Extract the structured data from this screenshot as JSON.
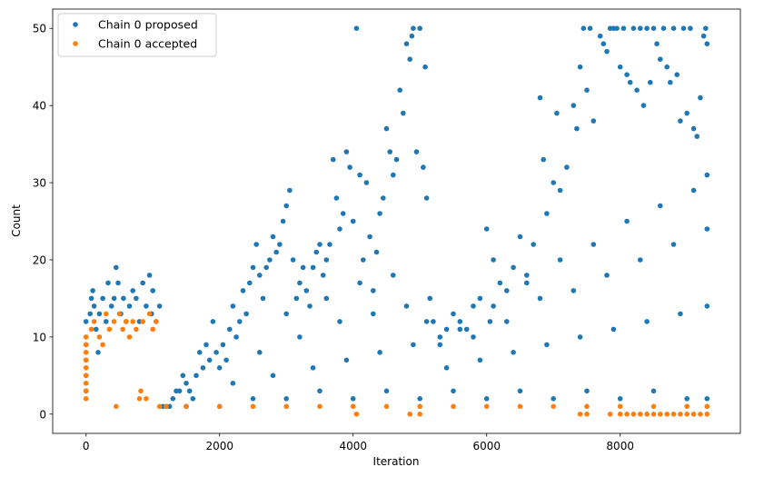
{
  "chart_data": {
    "type": "scatter",
    "title": "",
    "xlabel": "Iteration",
    "ylabel": "Count",
    "xlim": [
      -500,
      9800
    ],
    "ylim": [
      -2.5,
      52.5
    ],
    "x_ticks": [
      0,
      2000,
      4000,
      6000,
      8000
    ],
    "y_ticks": [
      0,
      10,
      20,
      30,
      40,
      50
    ],
    "grid": false,
    "legend_position": "upper-left",
    "series": [
      {
        "name": "Chain 0 proposed",
        "color": "#1f77b4",
        "points": [
          [
            0,
            3
          ],
          [
            0,
            5
          ],
          [
            0,
            7
          ],
          [
            0,
            9
          ],
          [
            0,
            12
          ],
          [
            60,
            13
          ],
          [
            80,
            15
          ],
          [
            100,
            16
          ],
          [
            120,
            14
          ],
          [
            150,
            11
          ],
          [
            180,
            8
          ],
          [
            200,
            13
          ],
          [
            250,
            15
          ],
          [
            300,
            12
          ],
          [
            330,
            17
          ],
          [
            380,
            14
          ],
          [
            420,
            15
          ],
          [
            450,
            19
          ],
          [
            480,
            17
          ],
          [
            520,
            13
          ],
          [
            560,
            15
          ],
          [
            600,
            12
          ],
          [
            650,
            14
          ],
          [
            700,
            16
          ],
          [
            750,
            15
          ],
          [
            800,
            12
          ],
          [
            850,
            17
          ],
          [
            900,
            14
          ],
          [
            950,
            18
          ],
          [
            980,
            13
          ],
          [
            1000,
            16
          ],
          [
            1050,
            12
          ],
          [
            1100,
            14
          ],
          [
            1150,
            1
          ],
          [
            1200,
            1
          ],
          [
            1250,
            1
          ],
          [
            1300,
            2
          ],
          [
            1350,
            3
          ],
          [
            1400,
            3
          ],
          [
            1450,
            5
          ],
          [
            1500,
            4
          ],
          [
            1550,
            3
          ],
          [
            1600,
            2
          ],
          [
            1650,
            5
          ],
          [
            1700,
            8
          ],
          [
            1750,
            6
          ],
          [
            1800,
            9
          ],
          [
            1850,
            7
          ],
          [
            1900,
            12
          ],
          [
            1950,
            8
          ],
          [
            2000,
            6
          ],
          [
            2050,
            9
          ],
          [
            2100,
            7
          ],
          [
            2150,
            11
          ],
          [
            2200,
            14
          ],
          [
            2250,
            10
          ],
          [
            2300,
            12
          ],
          [
            2350,
            16
          ],
          [
            2400,
            13
          ],
          [
            2450,
            17
          ],
          [
            2500,
            19
          ],
          [
            2550,
            22
          ],
          [
            2600,
            18
          ],
          [
            2650,
            15
          ],
          [
            2700,
            19
          ],
          [
            2750,
            20
          ],
          [
            2800,
            23
          ],
          [
            2850,
            21
          ],
          [
            2900,
            22
          ],
          [
            2950,
            25
          ],
          [
            3000,
            27
          ],
          [
            3050,
            29
          ],
          [
            3100,
            20
          ],
          [
            3150,
            15
          ],
          [
            3200,
            17
          ],
          [
            3250,
            19
          ],
          [
            3300,
            16
          ],
          [
            3350,
            14
          ],
          [
            3400,
            19
          ],
          [
            3450,
            21
          ],
          [
            3500,
            22
          ],
          [
            3550,
            18
          ],
          [
            3600,
            20
          ],
          [
            3650,
            22
          ],
          [
            3700,
            33
          ],
          [
            3750,
            28
          ],
          [
            3800,
            24
          ],
          [
            3850,
            26
          ],
          [
            3900,
            34
          ],
          [
            3950,
            32
          ],
          [
            4000,
            25
          ],
          [
            4050,
            50
          ],
          [
            4100,
            31
          ],
          [
            4150,
            20
          ],
          [
            4200,
            30
          ],
          [
            4250,
            23
          ],
          [
            4300,
            16
          ],
          [
            4350,
            21
          ],
          [
            4400,
            26
          ],
          [
            4450,
            28
          ],
          [
            4500,
            37
          ],
          [
            4550,
            34
          ],
          [
            4600,
            31
          ],
          [
            4650,
            33
          ],
          [
            4700,
            42
          ],
          [
            4750,
            39
          ],
          [
            4800,
            48
          ],
          [
            4850,
            46
          ],
          [
            4880,
            49
          ],
          [
            4900,
            50
          ],
          [
            4950,
            34
          ],
          [
            5000,
            50
          ],
          [
            5050,
            32
          ],
          [
            5080,
            45
          ],
          [
            5100,
            28
          ],
          [
            5150,
            15
          ],
          [
            5200,
            12
          ],
          [
            5300,
            10
          ],
          [
            5400,
            11
          ],
          [
            5500,
            13
          ],
          [
            5600,
            12
          ],
          [
            5700,
            11
          ],
          [
            5800,
            14
          ],
          [
            5900,
            15
          ],
          [
            6000,
            24
          ],
          [
            6050,
            12
          ],
          [
            6100,
            20
          ],
          [
            6200,
            17
          ],
          [
            6300,
            16
          ],
          [
            6400,
            19
          ],
          [
            6500,
            23
          ],
          [
            6600,
            18
          ],
          [
            6700,
            22
          ],
          [
            6800,
            41
          ],
          [
            6850,
            33
          ],
          [
            6900,
            26
          ],
          [
            7000,
            30
          ],
          [
            7050,
            39
          ],
          [
            7100,
            29
          ],
          [
            7200,
            32
          ],
          [
            7300,
            40
          ],
          [
            7350,
            37
          ],
          [
            7400,
            45
          ],
          [
            7450,
            50
          ],
          [
            7500,
            42
          ],
          [
            7550,
            50
          ],
          [
            7600,
            38
          ],
          [
            7700,
            49
          ],
          [
            7750,
            48
          ],
          [
            7800,
            47
          ],
          [
            7850,
            50
          ],
          [
            7900,
            50
          ],
          [
            7950,
            50
          ],
          [
            8000,
            45
          ],
          [
            8050,
            50
          ],
          [
            8100,
            44
          ],
          [
            8150,
            43
          ],
          [
            8200,
            50
          ],
          [
            8250,
            42
          ],
          [
            8300,
            50
          ],
          [
            8350,
            40
          ],
          [
            8400,
            50
          ],
          [
            8450,
            43
          ],
          [
            8500,
            50
          ],
          [
            8550,
            48
          ],
          [
            8600,
            46
          ],
          [
            8650,
            50
          ],
          [
            8700,
            45
          ],
          [
            8750,
            43
          ],
          [
            8800,
            50
          ],
          [
            8850,
            44
          ],
          [
            8900,
            38
          ],
          [
            8950,
            50
          ],
          [
            9000,
            39
          ],
          [
            9050,
            50
          ],
          [
            9100,
            37
          ],
          [
            9150,
            36
          ],
          [
            9200,
            41
          ],
          [
            9250,
            49
          ],
          [
            9280,
            50
          ],
          [
            9300,
            48
          ],
          [
            1500,
            1
          ],
          [
            2000,
            1
          ],
          [
            2500,
            2
          ],
          [
            3000,
            2
          ],
          [
            3500,
            3
          ],
          [
            4000,
            2
          ],
          [
            4500,
            3
          ],
          [
            5000,
            2
          ],
          [
            5500,
            3
          ],
          [
            6000,
            2
          ],
          [
            6500,
            3
          ],
          [
            7000,
            2
          ],
          [
            7500,
            3
          ],
          [
            8000,
            2
          ],
          [
            8500,
            3
          ],
          [
            9000,
            2
          ],
          [
            9300,
            2
          ],
          [
            2200,
            4
          ],
          [
            2800,
            5
          ],
          [
            3400,
            6
          ],
          [
            3900,
            7
          ],
          [
            4400,
            8
          ],
          [
            4900,
            9
          ],
          [
            5400,
            6
          ],
          [
            5900,
            7
          ],
          [
            6400,
            8
          ],
          [
            6900,
            9
          ],
          [
            7400,
            10
          ],
          [
            7900,
            11
          ],
          [
            8400,
            12
          ],
          [
            8900,
            13
          ],
          [
            9300,
            14
          ],
          [
            2600,
            8
          ],
          [
            3200,
            10
          ],
          [
            3800,
            12
          ],
          [
            4300,
            13
          ],
          [
            4800,
            14
          ],
          [
            5300,
            9
          ],
          [
            5800,
            10
          ],
          [
            6300,
            12
          ],
          [
            6800,
            15
          ],
          [
            7300,
            16
          ],
          [
            7800,
            18
          ],
          [
            8300,
            20
          ],
          [
            8800,
            22
          ],
          [
            9300,
            24
          ],
          [
            3000,
            13
          ],
          [
            3600,
            15
          ],
          [
            4100,
            17
          ],
          [
            4600,
            18
          ],
          [
            5100,
            12
          ],
          [
            5600,
            11
          ],
          [
            6100,
            14
          ],
          [
            6600,
            17
          ],
          [
            7100,
            20
          ],
          [
            7600,
            22
          ],
          [
            8100,
            25
          ],
          [
            8600,
            27
          ],
          [
            9100,
            29
          ],
          [
            9300,
            31
          ]
        ]
      },
      {
        "name": "Chain 0 accepted",
        "color": "#ff7f0e",
        "points": [
          [
            0,
            2
          ],
          [
            0,
            3
          ],
          [
            0,
            4
          ],
          [
            0,
            5
          ],
          [
            0,
            6
          ],
          [
            0,
            7
          ],
          [
            0,
            8
          ],
          [
            0,
            9
          ],
          [
            0,
            10
          ],
          [
            80,
            11
          ],
          [
            120,
            12
          ],
          [
            200,
            10
          ],
          [
            250,
            9
          ],
          [
            300,
            13
          ],
          [
            350,
            11
          ],
          [
            420,
            12
          ],
          [
            450,
            1
          ],
          [
            500,
            13
          ],
          [
            550,
            11
          ],
          [
            600,
            12
          ],
          [
            650,
            10
          ],
          [
            700,
            12
          ],
          [
            750,
            11
          ],
          [
            800,
            2
          ],
          [
            820,
            3
          ],
          [
            850,
            12
          ],
          [
            900,
            2
          ],
          [
            950,
            13
          ],
          [
            1000,
            11
          ],
          [
            1050,
            12
          ],
          [
            1100,
            1
          ],
          [
            1200,
            1
          ],
          [
            1500,
            1
          ],
          [
            2000,
            1
          ],
          [
            2500,
            1
          ],
          [
            3000,
            1
          ],
          [
            3500,
            1
          ],
          [
            4000,
            1
          ],
          [
            4500,
            1
          ],
          [
            5000,
            1
          ],
          [
            5500,
            1
          ],
          [
            6000,
            1
          ],
          [
            6500,
            1
          ],
          [
            7000,
            1
          ],
          [
            7500,
            1
          ],
          [
            8000,
            1
          ],
          [
            8500,
            1
          ],
          [
            9000,
            1
          ],
          [
            9300,
            1
          ],
          [
            4050,
            0
          ],
          [
            4850,
            0
          ],
          [
            5000,
            0
          ],
          [
            7400,
            0
          ],
          [
            7500,
            0
          ],
          [
            7850,
            0
          ],
          [
            8000,
            0
          ],
          [
            8100,
            0
          ],
          [
            8200,
            0
          ],
          [
            8300,
            0
          ],
          [
            8400,
            0
          ],
          [
            8500,
            0
          ],
          [
            8600,
            0
          ],
          [
            8700,
            0
          ],
          [
            8800,
            0
          ],
          [
            8900,
            0
          ],
          [
            9000,
            0
          ],
          [
            9100,
            0
          ],
          [
            9200,
            0
          ],
          [
            9300,
            0
          ]
        ]
      }
    ]
  }
}
